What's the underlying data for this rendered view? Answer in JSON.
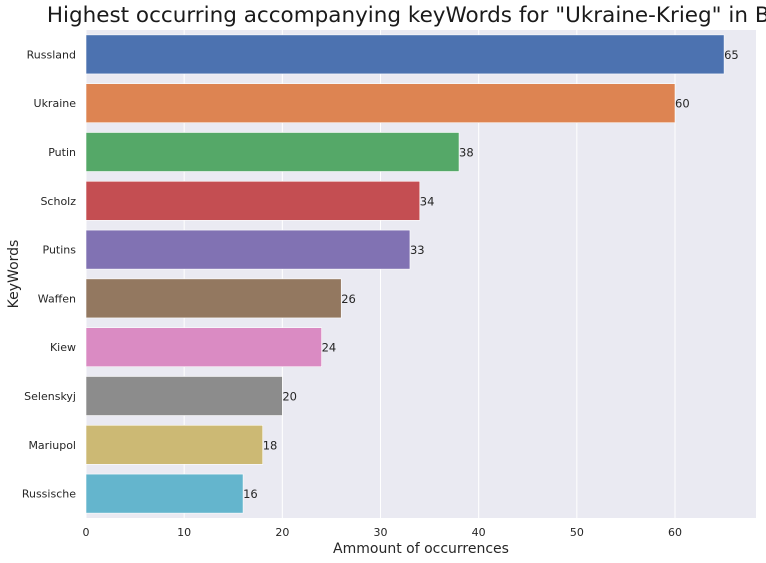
{
  "chart_data": {
    "type": "bar",
    "orientation": "horizontal",
    "title": "Highest occurring accompanying keyWords for \"Ukraine-Krieg\" in Bild",
    "xlabel": "Ammount of occurrences",
    "ylabel": "KeyWords",
    "categories": [
      "Russland",
      "Ukraine",
      "Putin",
      "Scholz",
      "Putins",
      "Waffen",
      "Kiew",
      "Selenskyj",
      "Mariupol",
      "Russische"
    ],
    "values": [
      65,
      60,
      38,
      34,
      33,
      26,
      24,
      20,
      18,
      16
    ],
    "colors": [
      "#4c72b0",
      "#dd8452",
      "#55a868",
      "#c44e52",
      "#8172b3",
      "#937860",
      "#da8bc3",
      "#8c8c8c",
      "#ccb974",
      "#64b5cd"
    ],
    "xticks": [
      0,
      10,
      20,
      30,
      40,
      50,
      60
    ],
    "xlim": [
      0,
      68.25
    ],
    "grid": true,
    "background": "#eaeaf2",
    "data_labels": true
  }
}
